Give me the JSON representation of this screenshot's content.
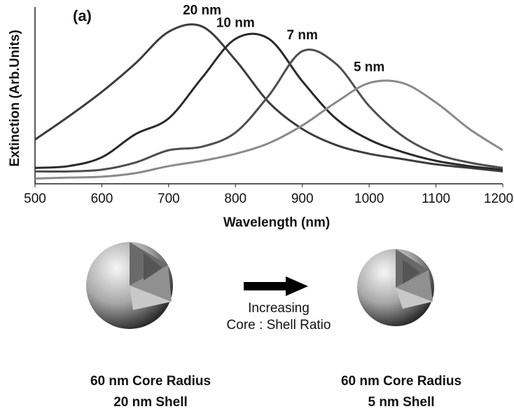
{
  "chart_data": {
    "type": "line",
    "annotation": "(a)",
    "x_label": "Wavelength (nm)",
    "y_label": "Extinction (Arb.Units)",
    "x": [
      500,
      550,
      600,
      650,
      700,
      750,
      800,
      850,
      900,
      950,
      1000,
      1050,
      1100,
      1150,
      1200
    ],
    "series": [
      {
        "name": "20 nm",
        "color": "#3c3c3c",
        "values": [
          0.25,
          0.38,
          0.52,
          0.68,
          0.86,
          0.89,
          0.7,
          0.46,
          0.31,
          0.22,
          0.17,
          0.14,
          0.11,
          0.09,
          0.07
        ]
      },
      {
        "name": "10 nm",
        "color": "#2a2a2a",
        "values": [
          0.09,
          0.1,
          0.15,
          0.28,
          0.37,
          0.6,
          0.82,
          0.82,
          0.58,
          0.37,
          0.25,
          0.18,
          0.13,
          0.1,
          0.08
        ]
      },
      {
        "name": "7 nm",
        "color": "#4e4e4e",
        "values": [
          0.07,
          0.07,
          0.08,
          0.12,
          0.19,
          0.21,
          0.29,
          0.5,
          0.75,
          0.68,
          0.44,
          0.27,
          0.17,
          0.12,
          0.09
        ]
      },
      {
        "name": "5 nm",
        "color": "#8a8a8a",
        "values": [
          0.03,
          0.035,
          0.04,
          0.06,
          0.1,
          0.13,
          0.17,
          0.23,
          0.33,
          0.46,
          0.57,
          0.57,
          0.46,
          0.31,
          0.19
        ]
      }
    ],
    "xlim": [
      500,
      1200
    ],
    "ylim": [
      0,
      1
    ],
    "xticks": [
      500,
      600,
      700,
      800,
      900,
      1000,
      1100,
      1200
    ]
  },
  "diagram": {
    "arrow_label": [
      "Increasing",
      "Core : Shell Ratio"
    ],
    "left_caption": [
      "60 nm Core Radius",
      "20 nm Shell"
    ],
    "right_caption": [
      "60 nm Core Radius",
      "5 nm Shell"
    ]
  }
}
